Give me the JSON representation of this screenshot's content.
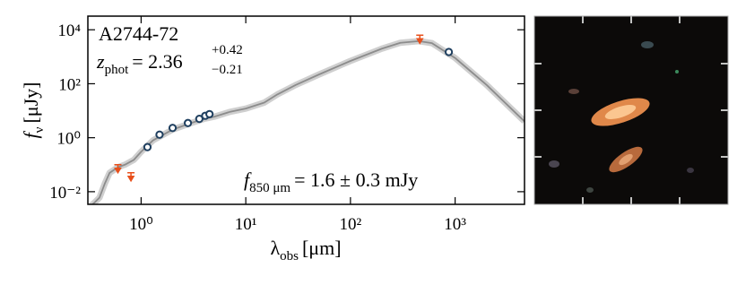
{
  "chart_data": {
    "type": "scatter",
    "title": "A2744-72",
    "redshift": {
      "symbol": "z",
      "sub": "phot",
      "eq": "= 2.36",
      "sup": "+0.42",
      "low": "−0.21"
    },
    "flux_note": {
      "symbol": "f",
      "sub": "850 μm",
      "text": "= 1.6 ± 0.3 mJy"
    },
    "x_label": {
      "symbol": "λ",
      "sub": "obs",
      "unit": "[μm]"
    },
    "y_label": {
      "symbol": "f",
      "sub": "ν",
      "unit": "[μJy]"
    },
    "x_log": true,
    "y_log": true,
    "xlim": [
      0.31,
      4600
    ],
    "ylim": [
      0.0034,
      32000
    ],
    "xticks": [
      {
        "value": 1,
        "label": "10⁰"
      },
      {
        "value": 10,
        "label": "10¹"
      },
      {
        "value": 100,
        "label": "10²"
      },
      {
        "value": 1000,
        "label": "10³"
      }
    ],
    "yticks": [
      {
        "value": 0.01,
        "label": "10⁻²"
      },
      {
        "value": 1,
        "label": "10⁰"
      },
      {
        "value": 100,
        "label": "10²"
      },
      {
        "value": 10000,
        "label": "10⁴"
      }
    ],
    "series": [
      {
        "marker": "line",
        "color": "#8c8c8c",
        "x": [
          0.33,
          0.36,
          0.4,
          0.45,
          0.5,
          0.6,
          0.7,
          0.85,
          1,
          1.3,
          2,
          3,
          4,
          5,
          7,
          10,
          15,
          20,
          30,
          50,
          100,
          200,
          300,
          450,
          600,
          1000,
          2000,
          4600
        ],
        "values": [
          0.003,
          0.004,
          0.006,
          0.02,
          0.05,
          0.08,
          0.1,
          0.15,
          0.3,
          0.8,
          2,
          3.5,
          5,
          6,
          9,
          12,
          20,
          40,
          90,
          220,
          700,
          2000,
          3300,
          3800,
          3200,
          900,
          90,
          4
        ]
      },
      {
        "marker": "circle",
        "color": "#1f3f5f",
        "x": [
          1.15,
          1.5,
          2.0,
          2.8,
          3.6,
          4.1,
          4.5,
          870
        ],
        "values": [
          0.45,
          1.3,
          2.3,
          3.5,
          5,
          6.5,
          7.5,
          1500
        ]
      },
      {
        "marker": "arrow-down",
        "color": "#e8501c",
        "x": [
          0.6,
          0.8,
          460
        ],
        "values": [
          0.08,
          0.04,
          5000
        ]
      }
    ]
  }
}
